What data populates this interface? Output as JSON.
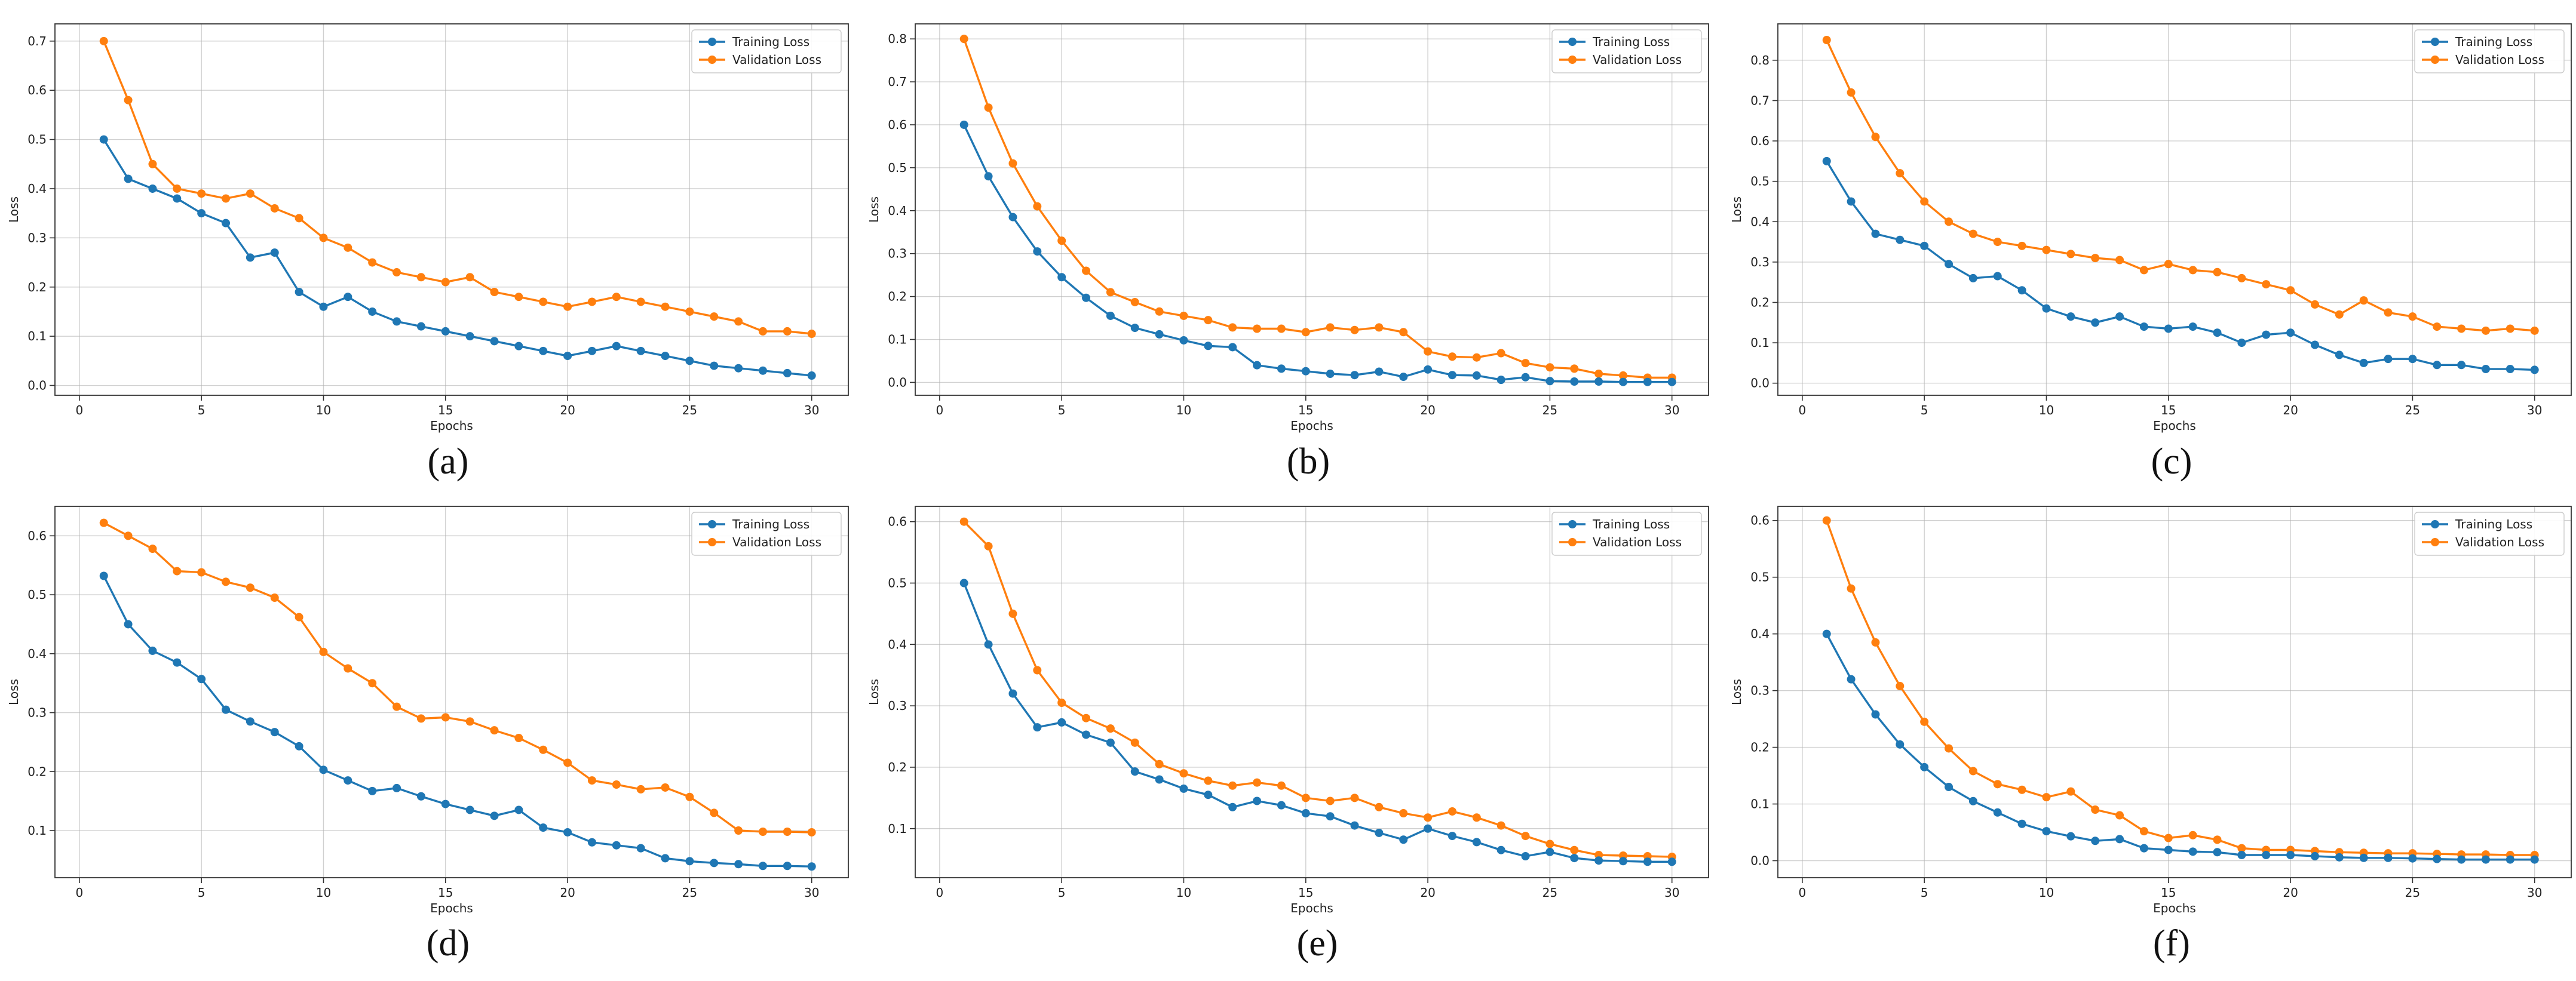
{
  "colors": {
    "training": "#1f77b4",
    "validation": "#ff7f0e"
  },
  "chart_data": [
    {
      "type": "line",
      "caption": "(a)",
      "xlabel": "Epochs",
      "ylabel": "Loss",
      "xlim": [
        -1,
        31.5
      ],
      "ylim": [
        -0.02,
        0.735
      ],
      "xticks": [
        0,
        5,
        10,
        15,
        20,
        25,
        30
      ],
      "yticks": [
        0.0,
        0.1,
        0.2,
        0.3,
        0.4,
        0.5,
        0.6,
        0.7
      ],
      "ytick_labels": [
        "0.0",
        "0.1",
        "0.2",
        "0.3",
        "0.4",
        "0.5",
        "0.6",
        "0.7"
      ],
      "legend": [
        "Training Loss",
        "Validation Loss"
      ],
      "x": [
        1,
        2,
        3,
        4,
        5,
        6,
        7,
        8,
        9,
        10,
        11,
        12,
        13,
        14,
        15,
        16,
        17,
        18,
        19,
        20,
        21,
        22,
        23,
        24,
        25,
        26,
        27,
        28,
        29,
        30
      ],
      "series": [
        {
          "name": "Training Loss",
          "values": [
            0.5,
            0.42,
            0.4,
            0.38,
            0.35,
            0.33,
            0.26,
            0.27,
            0.19,
            0.16,
            0.18,
            0.15,
            0.13,
            0.12,
            0.11,
            0.1,
            0.09,
            0.08,
            0.07,
            0.06,
            0.07,
            0.08,
            0.07,
            0.06,
            0.05,
            0.04,
            0.035,
            0.03,
            0.025,
            0.02
          ]
        },
        {
          "name": "Validation Loss",
          "values": [
            0.7,
            0.58,
            0.45,
            0.4,
            0.39,
            0.38,
            0.39,
            0.36,
            0.34,
            0.3,
            0.28,
            0.25,
            0.23,
            0.22,
            0.21,
            0.22,
            0.19,
            0.18,
            0.17,
            0.16,
            0.17,
            0.18,
            0.17,
            0.16,
            0.15,
            0.14,
            0.13,
            0.11,
            0.11,
            0.105
          ]
        }
      ]
    },
    {
      "type": "line",
      "caption": "(b)",
      "xlabel": "Epochs",
      "ylabel": "Loss",
      "xlim": [
        -1,
        31.5
      ],
      "ylim": [
        -0.03,
        0.835
      ],
      "xticks": [
        0,
        5,
        10,
        15,
        20,
        25,
        30
      ],
      "yticks": [
        0.0,
        0.1,
        0.2,
        0.3,
        0.4,
        0.5,
        0.6,
        0.7,
        0.8
      ],
      "ytick_labels": [
        "0.0",
        "0.1",
        "0.2",
        "0.3",
        "0.4",
        "0.5",
        "0.6",
        "0.7",
        "0.8"
      ],
      "legend": [
        "Training Loss",
        "Validation Loss"
      ],
      "x": [
        1,
        2,
        3,
        4,
        5,
        6,
        7,
        8,
        9,
        10,
        11,
        12,
        13,
        14,
        15,
        16,
        17,
        18,
        19,
        20,
        21,
        22,
        23,
        24,
        25,
        26,
        27,
        28,
        29,
        30
      ],
      "series": [
        {
          "name": "Training Loss",
          "values": [
            0.6,
            0.48,
            0.385,
            0.305,
            0.245,
            0.197,
            0.155,
            0.127,
            0.112,
            0.098,
            0.085,
            0.082,
            0.04,
            0.032,
            0.026,
            0.02,
            0.017,
            0.025,
            0.013,
            0.03,
            0.017,
            0.016,
            0.006,
            0.012,
            0.003,
            0.002,
            0.002,
            0.001,
            0.001,
            0.001
          ]
        },
        {
          "name": "Validation Loss",
          "values": [
            0.8,
            0.64,
            0.51,
            0.41,
            0.33,
            0.26,
            0.21,
            0.187,
            0.165,
            0.155,
            0.145,
            0.128,
            0.125,
            0.125,
            0.117,
            0.128,
            0.122,
            0.128,
            0.117,
            0.072,
            0.06,
            0.058,
            0.068,
            0.045,
            0.035,
            0.032,
            0.02,
            0.016,
            0.011,
            0.011
          ]
        }
      ]
    },
    {
      "type": "line",
      "caption": "(c)",
      "xlabel": "Epochs",
      "ylabel": "Loss",
      "xlim": [
        -1,
        31.5
      ],
      "ylim": [
        -0.03,
        0.89
      ],
      "xticks": [
        0,
        5,
        10,
        15,
        20,
        25,
        30
      ],
      "yticks": [
        0.0,
        0.1,
        0.2,
        0.3,
        0.4,
        0.5,
        0.6,
        0.7,
        0.8
      ],
      "ytick_labels": [
        "0.0",
        "0.1",
        "0.2",
        "0.3",
        "0.4",
        "0.5",
        "0.6",
        "0.7",
        "0.8"
      ],
      "legend": [
        "Training Loss",
        "Validation Loss"
      ],
      "x": [
        1,
        2,
        3,
        4,
        5,
        6,
        7,
        8,
        9,
        10,
        11,
        12,
        13,
        14,
        15,
        16,
        17,
        18,
        19,
        20,
        21,
        22,
        23,
        24,
        25,
        26,
        27,
        28,
        29,
        30
      ],
      "series": [
        {
          "name": "Training Loss",
          "values": [
            0.55,
            0.45,
            0.37,
            0.355,
            0.34,
            0.295,
            0.26,
            0.265,
            0.23,
            0.185,
            0.165,
            0.15,
            0.165,
            0.14,
            0.135,
            0.14,
            0.125,
            0.1,
            0.12,
            0.125,
            0.095,
            0.07,
            0.05,
            0.06,
            0.06,
            0.045,
            0.045,
            0.035,
            0.035,
            0.033
          ]
        },
        {
          "name": "Validation Loss",
          "values": [
            0.85,
            0.72,
            0.61,
            0.52,
            0.45,
            0.4,
            0.37,
            0.35,
            0.34,
            0.33,
            0.32,
            0.31,
            0.305,
            0.28,
            0.295,
            0.28,
            0.275,
            0.26,
            0.245,
            0.23,
            0.195,
            0.17,
            0.205,
            0.175,
            0.165,
            0.14,
            0.135,
            0.13,
            0.135,
            0.13
          ]
        }
      ]
    },
    {
      "type": "line",
      "caption": "(d)",
      "xlabel": "Epochs",
      "ylabel": "Loss",
      "xlim": [
        -1,
        31.5
      ],
      "ylim": [
        0.02,
        0.65
      ],
      "xticks": [
        0,
        5,
        10,
        15,
        20,
        25,
        30
      ],
      "yticks": [
        0.1,
        0.2,
        0.3,
        0.4,
        0.5,
        0.6
      ],
      "ytick_labels": [
        "0.1",
        "0.2",
        "0.3",
        "0.4",
        "0.5",
        "0.6"
      ],
      "legend": [
        "Training Loss",
        "Validation Loss"
      ],
      "x": [
        1,
        2,
        3,
        4,
        5,
        6,
        7,
        8,
        9,
        10,
        11,
        12,
        13,
        14,
        15,
        16,
        17,
        18,
        19,
        20,
        21,
        22,
        23,
        24,
        25,
        26,
        27,
        28,
        29,
        30
      ],
      "series": [
        {
          "name": "Training Loss",
          "values": [
            0.532,
            0.45,
            0.405,
            0.385,
            0.357,
            0.305,
            0.285,
            0.267,
            0.243,
            0.203,
            0.185,
            0.167,
            0.172,
            0.158,
            0.145,
            0.135,
            0.125,
            0.135,
            0.105,
            0.097,
            0.08,
            0.075,
            0.07,
            0.053,
            0.048,
            0.045,
            0.043,
            0.04,
            0.04,
            0.039
          ]
        },
        {
          "name": "Validation Loss",
          "values": [
            0.622,
            0.6,
            0.578,
            0.54,
            0.538,
            0.522,
            0.512,
            0.495,
            0.462,
            0.403,
            0.375,
            0.35,
            0.31,
            0.29,
            0.292,
            0.285,
            0.27,
            0.257,
            0.237,
            0.215,
            0.185,
            0.178,
            0.17,
            0.173,
            0.157,
            0.13,
            0.1,
            0.098,
            0.098,
            0.097
          ]
        }
      ]
    },
    {
      "type": "line",
      "caption": "(e)",
      "xlabel": "Epochs",
      "ylabel": "Loss",
      "xlim": [
        -1,
        31.5
      ],
      "ylim": [
        0.02,
        0.625
      ],
      "xticks": [
        0,
        5,
        10,
        15,
        20,
        25,
        30
      ],
      "yticks": [
        0.1,
        0.2,
        0.3,
        0.4,
        0.5,
        0.6
      ],
      "ytick_labels": [
        "0.1",
        "0.2",
        "0.3",
        "0.4",
        "0.5",
        "0.6"
      ],
      "legend": [
        "Training Loss",
        "Validation Loss"
      ],
      "x": [
        1,
        2,
        3,
        4,
        5,
        6,
        7,
        8,
        9,
        10,
        11,
        12,
        13,
        14,
        15,
        16,
        17,
        18,
        19,
        20,
        21,
        22,
        23,
        24,
        25,
        26,
        27,
        28,
        29,
        30
      ],
      "series": [
        {
          "name": "Training Loss",
          "values": [
            0.5,
            0.4,
            0.32,
            0.265,
            0.273,
            0.253,
            0.24,
            0.193,
            0.18,
            0.165,
            0.155,
            0.135,
            0.145,
            0.138,
            0.125,
            0.12,
            0.105,
            0.093,
            0.082,
            0.1,
            0.088,
            0.078,
            0.065,
            0.055,
            0.062,
            0.052,
            0.048,
            0.047,
            0.046,
            0.046
          ]
        },
        {
          "name": "Validation Loss",
          "values": [
            0.6,
            0.56,
            0.45,
            0.358,
            0.305,
            0.28,
            0.263,
            0.24,
            0.205,
            0.19,
            0.178,
            0.17,
            0.175,
            0.17,
            0.15,
            0.145,
            0.15,
            0.135,
            0.125,
            0.118,
            0.128,
            0.118,
            0.105,
            0.088,
            0.075,
            0.065,
            0.057,
            0.056,
            0.055,
            0.054
          ]
        }
      ]
    },
    {
      "type": "line",
      "caption": "(f)",
      "xlabel": "Epochs",
      "ylabel": "Loss",
      "xlim": [
        -1,
        31.5
      ],
      "ylim": [
        -0.03,
        0.625
      ],
      "xticks": [
        0,
        5,
        10,
        15,
        20,
        25,
        30
      ],
      "yticks": [
        0.0,
        0.1,
        0.2,
        0.3,
        0.4,
        0.5,
        0.6
      ],
      "ytick_labels": [
        "0.0",
        "0.1",
        "0.2",
        "0.3",
        "0.4",
        "0.5",
        "0.6"
      ],
      "legend": [
        "Training Loss",
        "Validation Loss"
      ],
      "x": [
        1,
        2,
        3,
        4,
        5,
        6,
        7,
        8,
        9,
        10,
        11,
        12,
        13,
        14,
        15,
        16,
        17,
        18,
        19,
        20,
        21,
        22,
        23,
        24,
        25,
        26,
        27,
        28,
        29,
        30
      ],
      "series": [
        {
          "name": "Training Loss",
          "values": [
            0.4,
            0.32,
            0.258,
            0.205,
            0.165,
            0.13,
            0.105,
            0.085,
            0.065,
            0.052,
            0.043,
            0.035,
            0.038,
            0.022,
            0.019,
            0.016,
            0.015,
            0.01,
            0.01,
            0.01,
            0.008,
            0.006,
            0.005,
            0.005,
            0.004,
            0.003,
            0.002,
            0.002,
            0.002,
            0.002
          ]
        },
        {
          "name": "Validation Loss",
          "values": [
            0.6,
            0.48,
            0.385,
            0.308,
            0.245,
            0.198,
            0.158,
            0.135,
            0.125,
            0.112,
            0.122,
            0.09,
            0.08,
            0.052,
            0.04,
            0.045,
            0.037,
            0.022,
            0.019,
            0.019,
            0.017,
            0.015,
            0.014,
            0.013,
            0.013,
            0.012,
            0.011,
            0.011,
            0.01,
            0.01
          ]
        }
      ]
    }
  ]
}
